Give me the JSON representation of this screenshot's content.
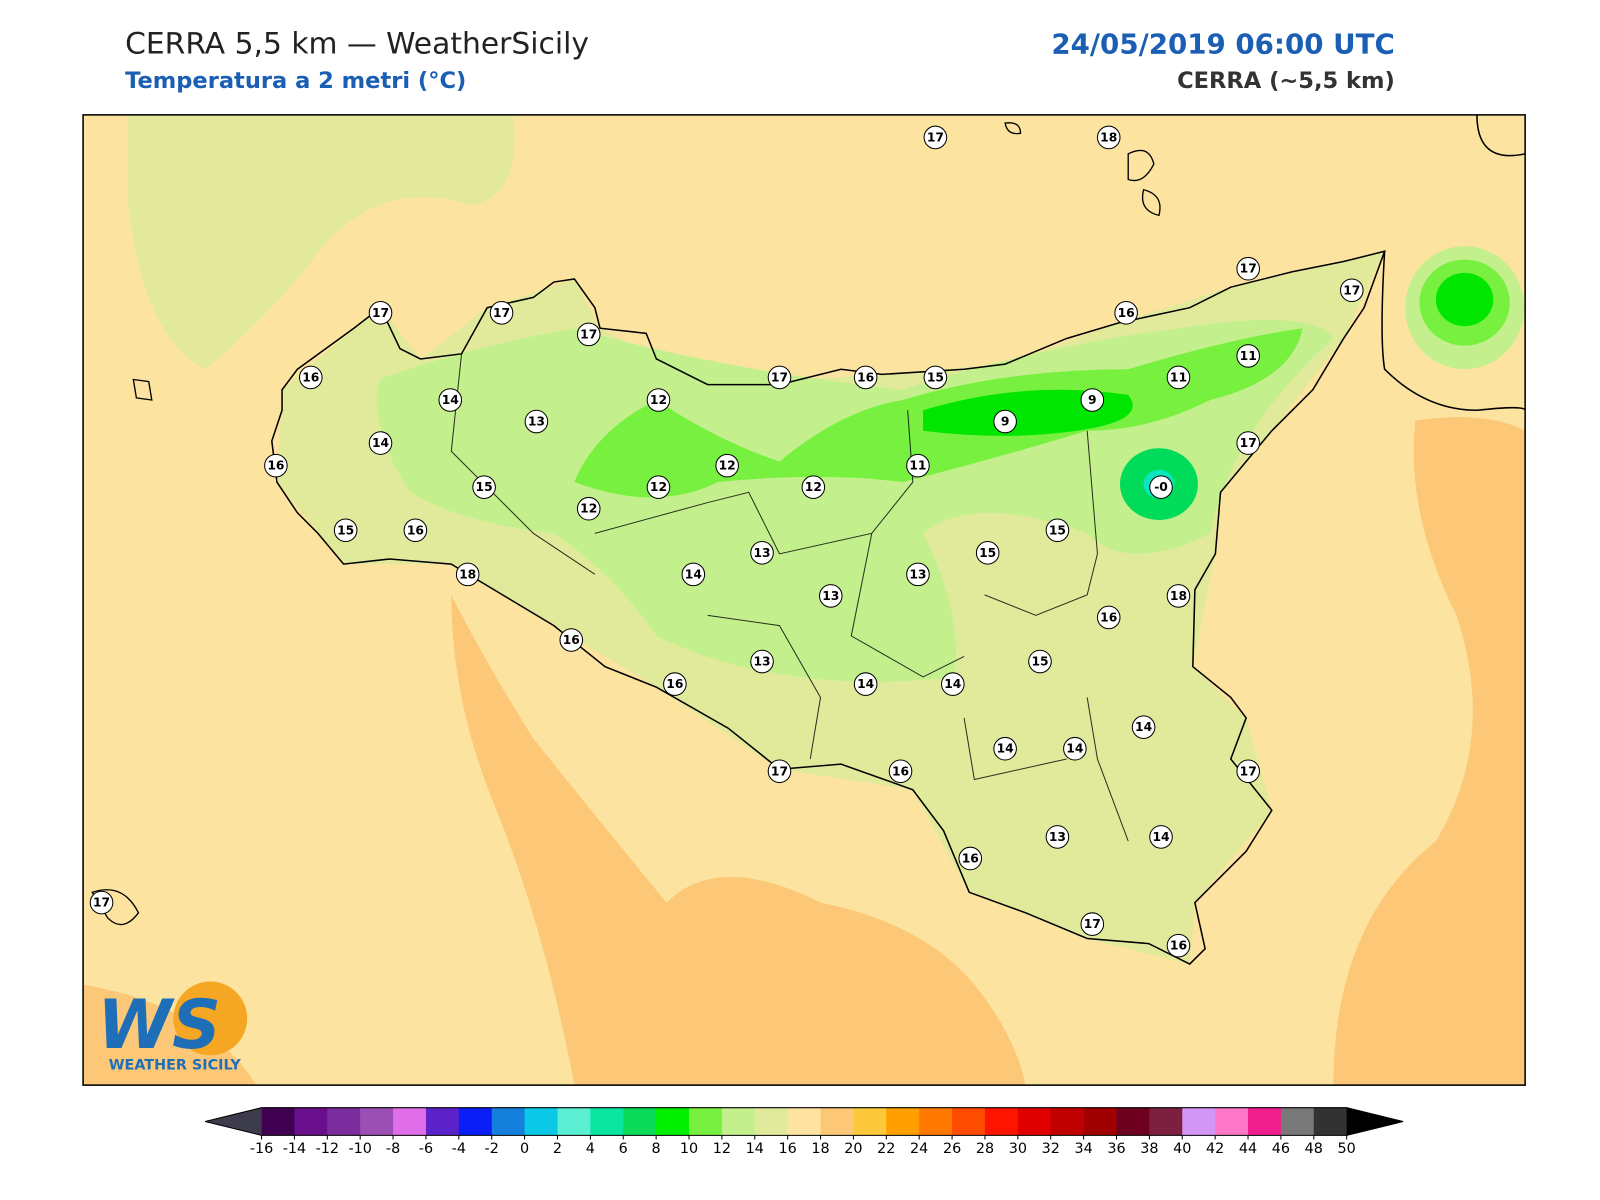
{
  "header": {
    "title": "CERRA 5,5 km — WeatherSicily",
    "subtitle": "Temperatura a 2 metri (°C)",
    "datetime": "24/05/2019 06:00 UTC",
    "model": "CERRA (~5,5 km)"
  },
  "stations": [
    "17",
    "18",
    "17",
    "17",
    "17",
    "17",
    "17",
    "16",
    "11",
    "16",
    "17",
    "16",
    "15",
    "11",
    "14",
    "9",
    "13",
    "12",
    "9",
    "14",
    "17",
    "16",
    "12",
    "11",
    "15",
    "12",
    "12",
    "-0",
    "12",
    "15",
    "16",
    "15",
    "13",
    "15",
    "14",
    "18",
    "13",
    "13",
    "18",
    "16",
    "16",
    "13",
    "15",
    "14",
    "14",
    "16",
    "14",
    "14",
    "14",
    "17",
    "16",
    "17",
    "13",
    "14",
    "16",
    "17",
    "17",
    "16"
  ],
  "colorbar": {
    "ticks": [
      -16,
      -14,
      -12,
      -10,
      -8,
      -6,
      -4,
      -2,
      0,
      2,
      4,
      6,
      8,
      10,
      12,
      14,
      16,
      18,
      20,
      22,
      24,
      26,
      28,
      30,
      32,
      34,
      36,
      38,
      40,
      42,
      44,
      46,
      48,
      50
    ],
    "colors": [
      "#3f0050",
      "#6a0f8c",
      "#7b2e9d",
      "#9b4fb5",
      "#e06ee8",
      "#5a22c8",
      "#0a1ef5",
      "#1480dc",
      "#0ac8e6",
      "#5aeed2",
      "#0ae6a0",
      "#0adc5a",
      "#00f000",
      "#78f040",
      "#c3f08c",
      "#e1ea9b",
      "#ffe3a0",
      "#fcc878",
      "#fcc83c",
      "#ffa000",
      "#ff7800",
      "#ff4b00",
      "#ff1400",
      "#e00000",
      "#c00000",
      "#a00000",
      "#6e0020",
      "#7d2040",
      "#d296f5",
      "#ff78c8",
      "#f01e8c",
      "#787878",
      "#323232"
    ],
    "under_color": "#3c3c4c",
    "over_color": "#000000"
  },
  "logo": {
    "mark": "WS",
    "text": "WEATHER SICILY"
  }
}
